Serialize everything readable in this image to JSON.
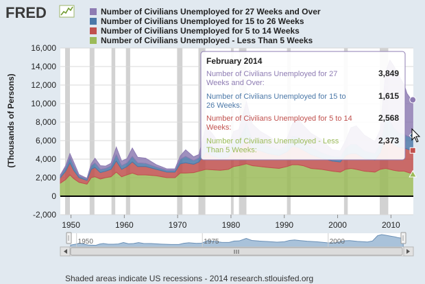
{
  "brand": {
    "logo_text": "FRED"
  },
  "colors": {
    "s27": "#8e7cb3",
    "s15": "#4b78a8",
    "s5": "#c0504d",
    "s0": "#9bbb59",
    "recession": "#d2d2d2",
    "plot_bg": "#ffffff",
    "page_bg": "#e1e9f0"
  },
  "chart_data": {
    "type": "area",
    "stacked": true,
    "title": "",
    "xlabel": "",
    "ylabel": "(Thousands of Persons)",
    "xlim": [
      1948.0,
      2014.2
    ],
    "ylim": [
      -2000,
      16000
    ],
    "y_ticks": [
      -2000,
      0,
      2000,
      4000,
      6000,
      8000,
      10000,
      12000,
      14000,
      16000
    ],
    "y_tick_labels": [
      "-2,000",
      "0",
      "2,000",
      "4,000",
      "6,000",
      "8,000",
      "10,000",
      "12,000",
      "14,000",
      "16,000"
    ],
    "x_ticks": [
      1950,
      1960,
      1970,
      1980,
      1990,
      2000,
      2010
    ],
    "x_tick_labels": [
      "1950",
      "1960",
      "1970",
      "1980",
      "1990",
      "2000",
      "2010"
    ],
    "x": [
      1948.0,
      1949.0,
      1949.8,
      1950.5,
      1951.5,
      1953.0,
      1953.8,
      1954.5,
      1955.5,
      1956.5,
      1957.5,
      1958.5,
      1959.5,
      1960.5,
      1961.5,
      1962.5,
      1964.0,
      1966.0,
      1968.0,
      1969.5,
      1970.5,
      1971.5,
      1973.0,
      1974.0,
      1975.3,
      1976.5,
      1978.0,
      1979.5,
      1980.5,
      1981.5,
      1982.9,
      1984.0,
      1985.5,
      1987.0,
      1989.0,
      1990.5,
      1991.5,
      1992.5,
      1993.5,
      1995.0,
      1997.0,
      1999.0,
      2000.5,
      2001.5,
      2002.5,
      2003.5,
      2005.0,
      2007.0,
      2008.0,
      2009.0,
      2009.8,
      2010.5,
      2011.5,
      2012.5,
      2013.0,
      2013.6,
      2014.1
    ],
    "series": [
      {
        "name": "Number of Civilians Unemployed - Less Than 5 Weeks",
        "values": [
          1400,
          1800,
          2300,
          1900,
          1500,
          1300,
          2000,
          2100,
          1850,
          2000,
          2100,
          2600,
          2100,
          2300,
          2500,
          2300,
          2300,
          2200,
          2000,
          2000,
          2500,
          2500,
          2550,
          2700,
          2900,
          2850,
          2800,
          2900,
          3200,
          3300,
          3500,
          3300,
          3200,
          3100,
          3000,
          3200,
          3400,
          3400,
          3300,
          3000,
          2900,
          2700,
          2600,
          2900,
          3000,
          2900,
          2700,
          2600,
          2900,
          3000,
          2900,
          2800,
          2700,
          2700,
          2600,
          2500,
          2373
        ]
      },
      {
        "name": "Number of Civilians Unemployed for 5 to 14 Weeks",
        "values": [
          600,
          900,
          1300,
          900,
          500,
          400,
          900,
          1000,
          700,
          700,
          800,
          1200,
          800,
          900,
          1200,
          900,
          900,
          700,
          600,
          600,
          1000,
          1100,
          900,
          1000,
          1900,
          1500,
          1300,
          1300,
          1900,
          1800,
          2700,
          1800,
          1700,
          1500,
          1400,
          1600,
          2000,
          1900,
          1700,
          1500,
          1200,
          1100,
          1100,
          1500,
          1600,
          1700,
          1400,
          1300,
          1800,
          3400,
          3200,
          2800,
          2600,
          2500,
          2500,
          2500,
          2568
        ]
      },
      {
        "name": "Number of Civilians Unemployed for 15 to 26 Weeks",
        "values": [
          200,
          400,
          600,
          500,
          200,
          150,
          400,
          500,
          350,
          300,
          350,
          700,
          400,
          400,
          600,
          400,
          350,
          250,
          200,
          200,
          500,
          700,
          400,
          450,
          1300,
          1000,
          700,
          700,
          1000,
          1100,
          1700,
          1000,
          900,
          800,
          600,
          700,
          1100,
          1100,
          900,
          800,
          600,
          500,
          500,
          800,
          1000,
          1000,
          800,
          700,
          1000,
          2000,
          2100,
          1800,
          1500,
          1500,
          1400,
          1400,
          1615
        ]
      },
      {
        "name": "Number of Civilians Unemployed for 27 Weeks and Over",
        "values": [
          100,
          200,
          400,
          400,
          150,
          80,
          200,
          500,
          400,
          250,
          300,
          800,
          500,
          450,
          900,
          600,
          550,
          250,
          150,
          150,
          350,
          700,
          400,
          350,
          1400,
          1400,
          700,
          550,
          900,
          1000,
          2300,
          1700,
          1200,
          1100,
          700,
          700,
          1300,
          2000,
          1800,
          1500,
          1400,
          700,
          700,
          800,
          1800,
          2000,
          1700,
          1300,
          1500,
          5000,
          6500,
          6700,
          6200,
          5300,
          4600,
          4200,
          3849
        ]
      }
    ],
    "recessions": [
      [
        1948.9,
        1949.8
      ],
      [
        1953.5,
        1954.4
      ],
      [
        1957.6,
        1958.3
      ],
      [
        1960.3,
        1961.1
      ],
      [
        1969.9,
        1970.9
      ],
      [
        1973.9,
        1975.2
      ],
      [
        1980.0,
        1980.5
      ],
      [
        1981.5,
        1982.9
      ],
      [
        1990.5,
        1991.2
      ],
      [
        2001.2,
        2001.9
      ],
      [
        2007.9,
        2009.5
      ]
    ],
    "legend": [
      {
        "label": "Number of Civilians Unemployed for 27 Weeks and Over",
        "color_key": "s27"
      },
      {
        "label": "Number of Civilians Unemployed for 15 to 26 Weeks",
        "color_key": "s15"
      },
      {
        "label": "Number of Civilians Unemployed for 5 to 14 Weeks",
        "color_key": "s5"
      },
      {
        "label": "Number of Civilians Unemployed - Less Than 5 Weeks",
        "color_key": "s0"
      }
    ],
    "legend_position": "top",
    "tooltip": {
      "title": "February 2014",
      "rows": [
        {
          "label_line1": "Number of Civilians Unemployed for 27",
          "label_line2": "Weeks and Over:",
          "value": "3,849",
          "color_key": "s27"
        },
        {
          "label_line1": "Number of Civilians Unemployed for 15 to",
          "label_line2": "26 Weeks:",
          "value": "1,615",
          "color_key": "s15"
        },
        {
          "label_line1": "Number of Civilians Unemployed for 5 to 14",
          "label_line2": "Weeks:",
          "value": "2,568",
          "color_key": "s5"
        },
        {
          "label_line1": "Number of Civilians Unemployed - Less",
          "label_line2": "Than 5 Weeks:",
          "value": "2,373",
          "color_key": "s0"
        }
      ]
    },
    "navigator": {
      "tick_labels": [
        "1950",
        "1975",
        "2000"
      ],
      "tick_years": [
        1950,
        1975,
        2000
      ]
    }
  },
  "footer": {
    "text": "Shaded areas indicate US recessions - 2014 research.stlouisfed.org"
  }
}
